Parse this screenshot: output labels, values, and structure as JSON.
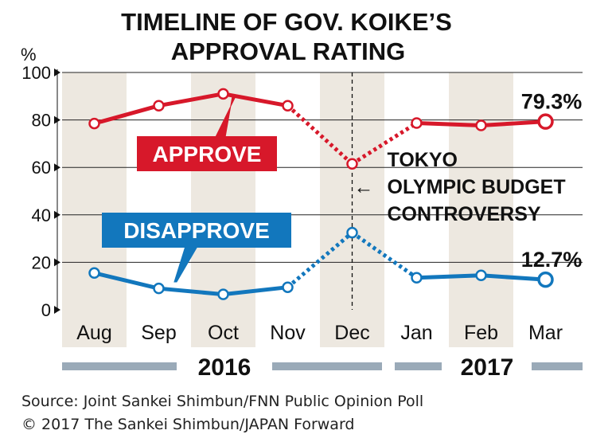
{
  "title_line1": "TIMELINE OF GOV. KOIKE’S",
  "title_line2": "APPROVAL RATING",
  "source": "Source: Joint Sankei Shimbun/FNN Public Opinion Poll",
  "copyright": "© 2017 The Sankei Shimbun/JAPAN Forward",
  "chart_data": {
    "type": "line",
    "title": "TIMELINE OF GOV. KOIKE’S APPROVAL RATING",
    "ylabel": "%",
    "ylim": [
      0,
      100
    ],
    "yticks": [
      0,
      20,
      40,
      60,
      80,
      100
    ],
    "categories": [
      "Aug",
      "Sep",
      "Oct",
      "Nov",
      "Dec",
      "Jan",
      "Feb",
      "Mar"
    ],
    "years": [
      {
        "label": "2016",
        "months": [
          "Aug",
          "Sep",
          "Oct",
          "Nov",
          "Dec"
        ]
      },
      {
        "label": "2017",
        "months": [
          "Jan",
          "Feb",
          "Mar"
        ]
      }
    ],
    "series": [
      {
        "name": "APPROVE",
        "color": "#d7182a",
        "values": [
          78.5,
          86,
          91,
          86,
          61.5,
          78.7,
          77.7,
          79.3
        ],
        "end_label": "79.3%"
      },
      {
        "name": "DISAPPROVE",
        "color": "#1277bd",
        "values": [
          15.5,
          9,
          6.5,
          9.5,
          32.5,
          13.5,
          14.5,
          12.7
        ],
        "end_label": "12.7%"
      }
    ],
    "annotation": {
      "at": "Dec",
      "lines": [
        "TOKYO",
        "OLYMPIC BUDGET",
        "CONTROVERSY"
      ],
      "arrow": "←"
    },
    "dotted_segments": [
      "Nov-Dec",
      "Dec-Jan"
    ],
    "grid": true,
    "shaded_columns": [
      "Aug",
      "Oct",
      "Dec",
      "Feb"
    ],
    "colors": {
      "approve": "#d7182a",
      "disapprove": "#1277bd",
      "shade": "#ede8e0",
      "year_bar": "#9aaab8"
    }
  }
}
